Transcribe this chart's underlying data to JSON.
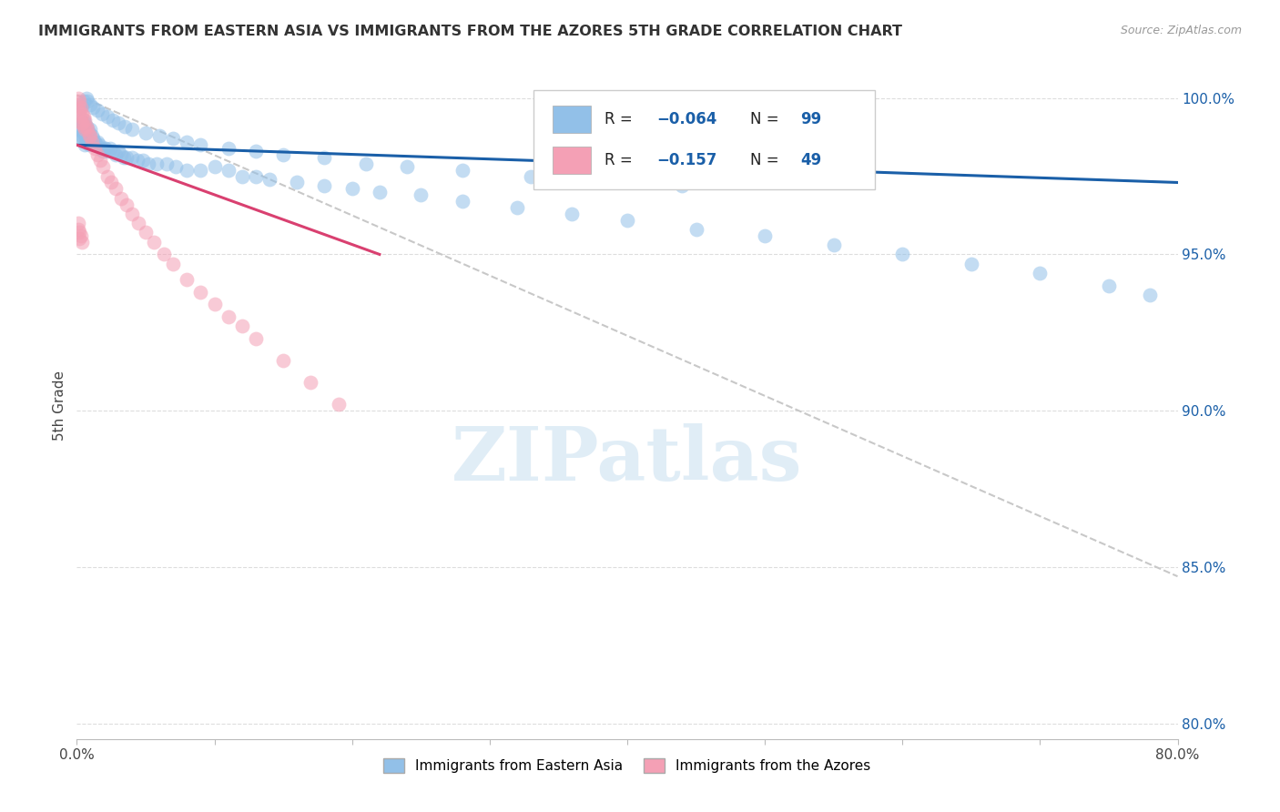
{
  "title": "IMMIGRANTS FROM EASTERN ASIA VS IMMIGRANTS FROM THE AZORES 5TH GRADE CORRELATION CHART",
  "source": "Source: ZipAtlas.com",
  "ylabel": "5th Grade",
  "xlim": [
    0.0,
    0.8
  ],
  "ylim": [
    0.795,
    1.008
  ],
  "xticks": [
    0.0,
    0.1,
    0.2,
    0.3,
    0.4,
    0.5,
    0.6,
    0.7,
    0.8
  ],
  "xticklabels": [
    "0.0%",
    "",
    "",
    "",
    "",
    "",
    "",
    "",
    "80.0%"
  ],
  "yticks": [
    0.8,
    0.85,
    0.9,
    0.95,
    1.0
  ],
  "yticklabels": [
    "80.0%",
    "85.0%",
    "90.0%",
    "95.0%",
    "100.0%"
  ],
  "blue_color": "#92C0E8",
  "pink_color": "#F4A0B5",
  "blue_line_color": "#1A5FA8",
  "pink_line_color": "#D94070",
  "dashed_line_color": "#C8C8C8",
  "watermark": "ZIPatlas",
  "blue_x": [
    0.001,
    0.002,
    0.002,
    0.003,
    0.003,
    0.004,
    0.004,
    0.005,
    0.005,
    0.006,
    0.006,
    0.006,
    0.007,
    0.007,
    0.008,
    0.008,
    0.009,
    0.009,
    0.01,
    0.01,
    0.011,
    0.012,
    0.013,
    0.014,
    0.015,
    0.016,
    0.017,
    0.018,
    0.019,
    0.02,
    0.021,
    0.022,
    0.024,
    0.026,
    0.028,
    0.03,
    0.032,
    0.034,
    0.036,
    0.04,
    0.044,
    0.048,
    0.052,
    0.058,
    0.065,
    0.072,
    0.08,
    0.09,
    0.1,
    0.11,
    0.12,
    0.13,
    0.14,
    0.16,
    0.18,
    0.2,
    0.22,
    0.25,
    0.28,
    0.32,
    0.36,
    0.4,
    0.45,
    0.5,
    0.55,
    0.6,
    0.65,
    0.7,
    0.75,
    0.78,
    0.003,
    0.004,
    0.005,
    0.007,
    0.008,
    0.01,
    0.012,
    0.015,
    0.018,
    0.022,
    0.026,
    0.03,
    0.035,
    0.04,
    0.05,
    0.06,
    0.07,
    0.08,
    0.09,
    0.11,
    0.13,
    0.15,
    0.18,
    0.21,
    0.24,
    0.28,
    0.33,
    0.38,
    0.44
  ],
  "blue_y": [
    0.99,
    0.988,
    0.993,
    0.991,
    0.987,
    0.992,
    0.988,
    0.993,
    0.989,
    0.992,
    0.988,
    0.985,
    0.991,
    0.987,
    0.99,
    0.986,
    0.989,
    0.985,
    0.99,
    0.986,
    0.988,
    0.987,
    0.986,
    0.985,
    0.986,
    0.985,
    0.984,
    0.984,
    0.983,
    0.984,
    0.984,
    0.983,
    0.984,
    0.983,
    0.982,
    0.983,
    0.982,
    0.981,
    0.981,
    0.981,
    0.98,
    0.98,
    0.979,
    0.979,
    0.979,
    0.978,
    0.977,
    0.977,
    0.978,
    0.977,
    0.975,
    0.975,
    0.974,
    0.973,
    0.972,
    0.971,
    0.97,
    0.969,
    0.967,
    0.965,
    0.963,
    0.961,
    0.958,
    0.956,
    0.953,
    0.95,
    0.947,
    0.944,
    0.94,
    0.937,
    0.997,
    0.998,
    0.999,
    1.0,
    0.999,
    0.998,
    0.997,
    0.996,
    0.995,
    0.994,
    0.993,
    0.992,
    0.991,
    0.99,
    0.989,
    0.988,
    0.987,
    0.986,
    0.985,
    0.984,
    0.983,
    0.982,
    0.981,
    0.979,
    0.978,
    0.977,
    0.975,
    0.974,
    0.972
  ],
  "pink_x": [
    0.001,
    0.001,
    0.002,
    0.002,
    0.003,
    0.003,
    0.003,
    0.004,
    0.004,
    0.005,
    0.005,
    0.006,
    0.006,
    0.007,
    0.008,
    0.009,
    0.01,
    0.011,
    0.013,
    0.015,
    0.017,
    0.019,
    0.022,
    0.025,
    0.028,
    0.032,
    0.036,
    0.04,
    0.045,
    0.05,
    0.056,
    0.063,
    0.07,
    0.08,
    0.09,
    0.1,
    0.11,
    0.12,
    0.13,
    0.15,
    0.17,
    0.19,
    0.001,
    0.001,
    0.002,
    0.002,
    0.003,
    0.004
  ],
  "pink_y": [
    1.0,
    0.998,
    0.999,
    0.996,
    0.997,
    0.994,
    0.992,
    0.995,
    0.992,
    0.994,
    0.991,
    0.993,
    0.99,
    0.991,
    0.99,
    0.988,
    0.988,
    0.986,
    0.984,
    0.982,
    0.98,
    0.978,
    0.975,
    0.973,
    0.971,
    0.968,
    0.966,
    0.963,
    0.96,
    0.957,
    0.954,
    0.95,
    0.947,
    0.942,
    0.938,
    0.934,
    0.93,
    0.927,
    0.923,
    0.916,
    0.909,
    0.902,
    0.96,
    0.958,
    0.957,
    0.955,
    0.956,
    0.954
  ],
  "blue_trend_x0": 0.0,
  "blue_trend_y0": 0.985,
  "blue_trend_x1": 0.8,
  "blue_trend_y1": 0.973,
  "pink_trend_x0": 0.0,
  "pink_trend_y0": 0.985,
  "pink_trend_x1": 0.22,
  "pink_trend_y1": 0.95,
  "dash_trend_x0": 0.0,
  "dash_trend_y0": 1.001,
  "dash_trend_x1": 0.8,
  "dash_trend_y1": 0.847
}
